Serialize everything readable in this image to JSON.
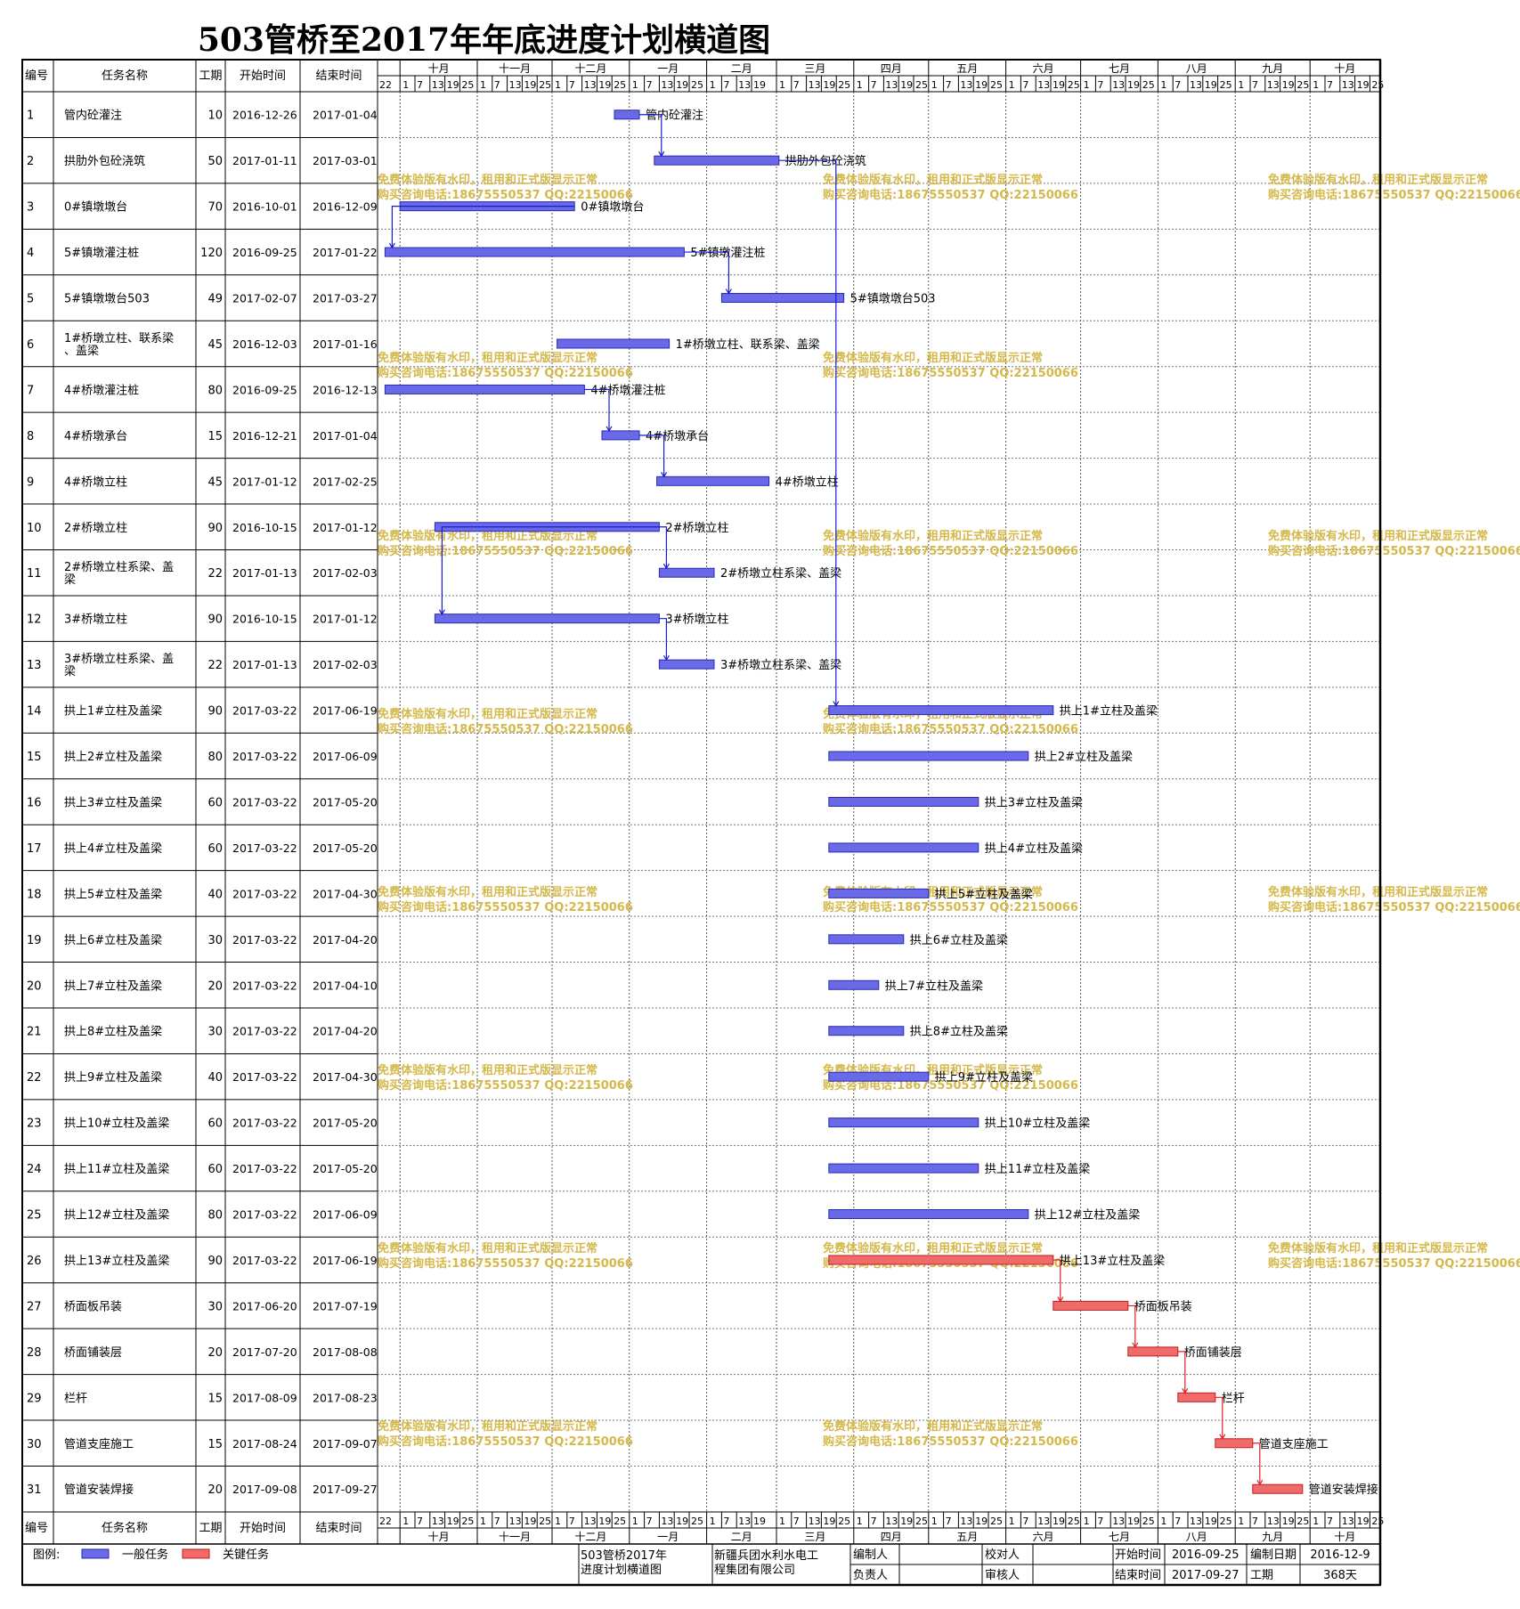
{
  "title": "503管桥至2017年年底进度计划横道图",
  "chart_data": {
    "type": "gantt",
    "title": "503管桥至2017年年底进度计划横道图",
    "columns": [
      "编号",
      "任务名称",
      "工期",
      "开始时间",
      "结束时间"
    ],
    "months": [
      "十月",
      "十一月",
      "十二月",
      "一月",
      "二月",
      "三月",
      "四月",
      "五月",
      "六月",
      "七月",
      "八月",
      "九月",
      "十月"
    ],
    "sub_ticks_sep": "22",
    "sub_ticks": [
      [
        "1",
        "7",
        "13",
        "19",
        "25"
      ],
      [
        "1",
        "7",
        "13",
        "19",
        "25"
      ],
      [
        "1",
        "7",
        "13",
        "19",
        "25"
      ],
      [
        "1",
        "7",
        "13",
        "19",
        "25"
      ],
      [
        "1",
        "7",
        "13",
        "19"
      ],
      [
        "1",
        "7",
        "13",
        "19",
        "25"
      ],
      [
        "1",
        "7",
        "13",
        "19",
        "25"
      ],
      [
        "1",
        "7",
        "13",
        "19",
        "25"
      ],
      [
        "1",
        "7",
        "13",
        "19",
        "25"
      ],
      [
        "1",
        "7",
        "13",
        "19",
        "25"
      ],
      [
        "1",
        "7",
        "13",
        "19",
        "25"
      ],
      [
        "1",
        "7",
        "13",
        "19",
        "25"
      ],
      [
        "1",
        "7",
        "13",
        "19",
        "25"
      ]
    ],
    "axis_start": "2016-09-22",
    "tasks": [
      {
        "id": "1",
        "name": "管内砼灌注",
        "duration": "10",
        "start": "2016-12-26",
        "end": "2017-01-04",
        "critical": false
      },
      {
        "id": "2",
        "name": "拱肋外包砼浇筑",
        "duration": "50",
        "start": "2017-01-11",
        "end": "2017-03-01",
        "critical": false
      },
      {
        "id": "3",
        "name": "0#镇墩墩台",
        "duration": "70",
        "start": "2016-10-01",
        "end": "2016-12-09",
        "critical": false
      },
      {
        "id": "4",
        "name": "5#镇墩灌注桩",
        "duration": "120",
        "start": "2016-09-25",
        "end": "2017-01-22",
        "critical": false
      },
      {
        "id": "5",
        "name": "5#镇墩墩台503",
        "duration": "49",
        "start": "2017-02-07",
        "end": "2017-03-27",
        "critical": false
      },
      {
        "id": "6",
        "name": "1#桥墩立柱、联系梁、盖梁",
        "duration": "45",
        "start": "2016-12-03",
        "end": "2017-01-16",
        "critical": false
      },
      {
        "id": "7",
        "name": "4#桥墩灌注桩",
        "duration": "80",
        "start": "2016-09-25",
        "end": "2016-12-13",
        "critical": false
      },
      {
        "id": "8",
        "name": "4#桥墩承台",
        "duration": "15",
        "start": "2016-12-21",
        "end": "2017-01-04",
        "critical": false
      },
      {
        "id": "9",
        "name": "4#桥墩立柱",
        "duration": "45",
        "start": "2017-01-12",
        "end": "2017-02-25",
        "critical": false
      },
      {
        "id": "10",
        "name": "2#桥墩立柱",
        "duration": "90",
        "start": "2016-10-15",
        "end": "2017-01-12",
        "critical": false
      },
      {
        "id": "11",
        "name": "2#桥墩立柱系梁、盖梁",
        "duration": "22",
        "start": "2017-01-13",
        "end": "2017-02-03",
        "critical": false
      },
      {
        "id": "12",
        "name": "3#桥墩立柱",
        "duration": "90",
        "start": "2016-10-15",
        "end": "2017-01-12",
        "critical": false
      },
      {
        "id": "13",
        "name": "3#桥墩立柱系梁、盖梁",
        "duration": "22",
        "start": "2017-01-13",
        "end": "2017-02-03",
        "critical": false
      },
      {
        "id": "14",
        "name": "拱上1#立柱及盖梁",
        "duration": "90",
        "start": "2017-03-22",
        "end": "2017-06-19",
        "critical": false
      },
      {
        "id": "15",
        "name": "拱上2#立柱及盖梁",
        "duration": "80",
        "start": "2017-03-22",
        "end": "2017-06-09",
        "critical": false
      },
      {
        "id": "16",
        "name": "拱上3#立柱及盖梁",
        "duration": "60",
        "start": "2017-03-22",
        "end": "2017-05-20",
        "critical": false
      },
      {
        "id": "17",
        "name": "拱上4#立柱及盖梁",
        "duration": "60",
        "start": "2017-03-22",
        "end": "2017-05-20",
        "critical": false
      },
      {
        "id": "18",
        "name": "拱上5#立柱及盖梁",
        "duration": "40",
        "start": "2017-03-22",
        "end": "2017-04-30",
        "critical": false
      },
      {
        "id": "19",
        "name": "拱上6#立柱及盖梁",
        "duration": "30",
        "start": "2017-03-22",
        "end": "2017-04-20",
        "critical": false
      },
      {
        "id": "20",
        "name": "拱上7#立柱及盖梁",
        "duration": "20",
        "start": "2017-03-22",
        "end": "2017-04-10",
        "critical": false
      },
      {
        "id": "21",
        "name": "拱上8#立柱及盖梁",
        "duration": "30",
        "start": "2017-03-22",
        "end": "2017-04-20",
        "critical": false
      },
      {
        "id": "22",
        "name": "拱上9#立柱及盖梁",
        "duration": "40",
        "start": "2017-03-22",
        "end": "2017-04-30",
        "critical": false
      },
      {
        "id": "23",
        "name": "拱上10#立柱及盖梁",
        "duration": "60",
        "start": "2017-03-22",
        "end": "2017-05-20",
        "critical": false
      },
      {
        "id": "24",
        "name": "拱上11#立柱及盖梁",
        "duration": "60",
        "start": "2017-03-22",
        "end": "2017-05-20",
        "critical": false
      },
      {
        "id": "25",
        "name": "拱上12#立柱及盖梁",
        "duration": "80",
        "start": "2017-03-22",
        "end": "2017-06-09",
        "critical": false
      },
      {
        "id": "26",
        "name": "拱上13#立柱及盖梁",
        "duration": "90",
        "start": "2017-03-22",
        "end": "2017-06-19",
        "critical": true
      },
      {
        "id": "27",
        "name": "桥面板吊装",
        "duration": "30",
        "start": "2017-06-20",
        "end": "2017-07-19",
        "critical": true
      },
      {
        "id": "28",
        "name": "桥面铺装层",
        "duration": "20",
        "start": "2017-07-20",
        "end": "2017-08-08",
        "critical": true
      },
      {
        "id": "29",
        "name": "栏杆",
        "duration": "15",
        "start": "2017-08-09",
        "end": "2017-08-23",
        "critical": true
      },
      {
        "id": "30",
        "name": "管道支座施工",
        "duration": "15",
        "start": "2017-08-24",
        "end": "2017-09-07",
        "critical": true
      },
      {
        "id": "31",
        "name": "管道安装焊接",
        "duration": "20",
        "start": "2017-09-08",
        "end": "2017-09-27",
        "critical": true
      }
    ],
    "links": [
      [
        1,
        2
      ],
      [
        3,
        4
      ],
      [
        4,
        5
      ],
      [
        7,
        8
      ],
      [
        8,
        9
      ],
      [
        10,
        11
      ],
      [
        10,
        12
      ],
      [
        12,
        13
      ],
      [
        2,
        14
      ],
      [
        26,
        27
      ],
      [
        27,
        28
      ],
      [
        28,
        29
      ],
      [
        29,
        30
      ],
      [
        30,
        31
      ]
    ],
    "legend": [
      {
        "label": "一般任务",
        "color": "#6a6ae8"
      },
      {
        "label": "关键任务",
        "color": "#f06a6a"
      }
    ],
    "colors": {
      "normal_fill": "#6a6ae8",
      "normal_stroke": "#2a2ab0",
      "critical_fill": "#f06a6a",
      "critical_stroke": "#c02020",
      "link": "#1a1ad0",
      "critical_link": "#e02020"
    }
  },
  "footer": {
    "legend_label": "图例:",
    "project_name": "503管桥2017年进度计划横道图",
    "company": "新疆兵团水利水电工程集团有限公司",
    "labels": {
      "compiler": "编制人",
      "checker": "校对人",
      "manager": "负责人",
      "reviewer": "审核人",
      "start_label": "开始时间",
      "end_label": "结束时间",
      "date_label": "编制日期",
      "duration_label": "工期"
    },
    "values": {
      "start": "2016-09-25",
      "end": "2017-09-27",
      "date": "2016-12-9",
      "duration": "368天"
    }
  },
  "watermark": {
    "line1": "免费体验版有水印，租用和正式版显示正常",
    "line2": "购买咨询电话:18675550537 QQ:22150066"
  }
}
